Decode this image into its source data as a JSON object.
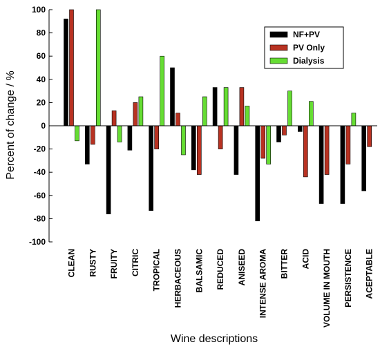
{
  "chart_data": {
    "type": "bar",
    "xlabel": "Wine descriptions",
    "ylabel": "Percent of change / %",
    "ylim": [
      -100,
      100
    ],
    "yticks": [
      -100,
      -80,
      -60,
      -40,
      -20,
      0,
      20,
      40,
      60,
      80,
      100
    ],
    "categories": [
      "CLEAN",
      "RUSTY",
      "FRUITY",
      "CITRIC",
      "TROPICAL",
      "HERBACEOUS",
      "BALSAMIC",
      "REDUCED",
      "ANISEED",
      "INTENSE AROMA",
      "BITTER",
      "ACID",
      "VOLUME IN MOUTH",
      "PERSISTENCE",
      "ACEPTABLE"
    ],
    "series": [
      {
        "name": "NF+PV",
        "color": "#000000",
        "values": [
          92,
          -33,
          -76,
          -21,
          -73,
          50,
          -38,
          33,
          -42,
          -82,
          -14,
          -5,
          -67,
          -67,
          -56
        ]
      },
      {
        "name": "PV Only",
        "color": "#b83222",
        "values": [
          100,
          -16,
          13,
          20,
          -20,
          11,
          -42,
          -20,
          33,
          -28,
          -8,
          -44,
          -42,
          -33,
          -18
        ]
      },
      {
        "name": "Dialysis",
        "color": "#66dd33",
        "values": [
          -13,
          100,
          -14,
          25,
          60,
          -25,
          25,
          33,
          17,
          -33,
          30,
          21,
          0,
          11,
          0
        ]
      }
    ],
    "legend_position": "top-right",
    "grid": false
  }
}
